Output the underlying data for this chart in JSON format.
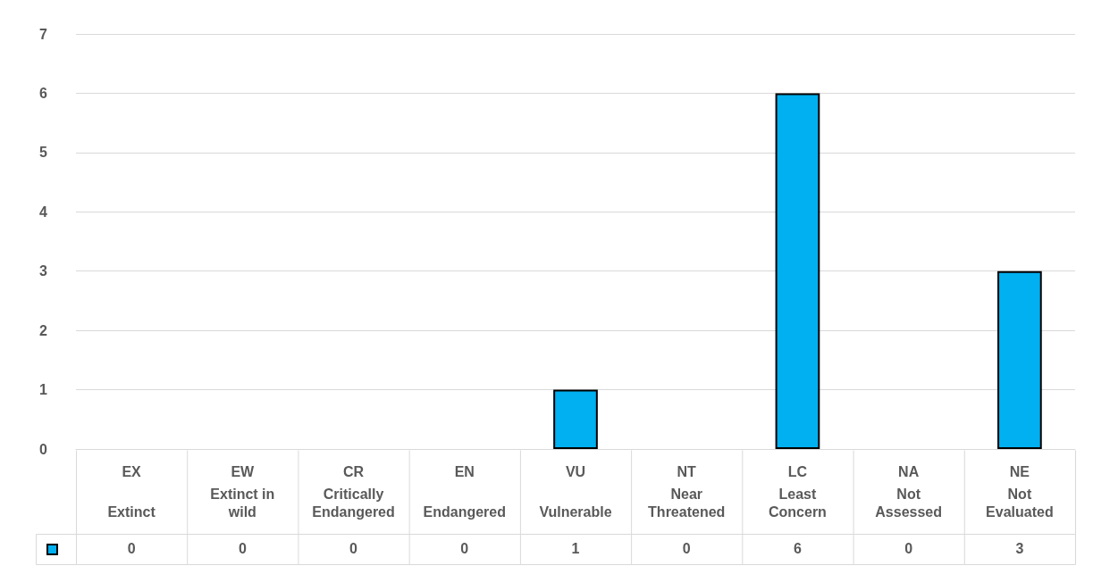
{
  "chart_data": {
    "type": "bar",
    "categories": [
      "EX\nExtinct",
      "EW\nExtinct in wild",
      "CR\nCritically Endangered",
      "EN\nEndangered",
      "VU\nVulnerable",
      "NT\nNear Threatened",
      "LC\nLeast Concern",
      "NA\nNot Assessed",
      "NE\nNot Evaluated"
    ],
    "series": [
      {
        "color": "#00b0f0",
        "values": [
          0,
          0,
          0,
          0,
          1,
          0,
          6,
          0,
          3
        ]
      }
    ],
    "ylim": [
      0,
      7
    ],
    "yticks": [
      0,
      1,
      2,
      3,
      4,
      5,
      6,
      7
    ],
    "grid": "y",
    "data_labels": true
  }
}
